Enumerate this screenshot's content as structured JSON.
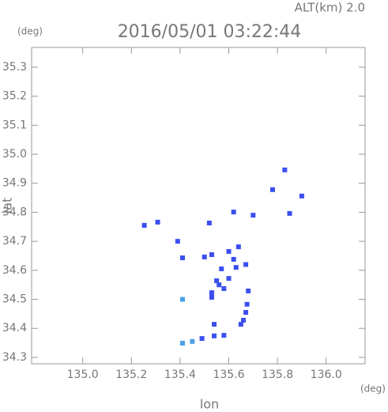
{
  "chart_data": {
    "type": "scatter",
    "title": "2016/05/01 03:22:44",
    "subtitle": "ALT(km) 2.0",
    "y_unit": "(deg)",
    "x_unit": "(deg)",
    "x_label": "lon",
    "y_label": "lat",
    "xlim": [
      134.79,
      136.16
    ],
    "ylim": [
      34.278,
      35.368
    ],
    "xticks": [
      {
        "value": 135.0,
        "label": "135.0"
      },
      135.2,
      135.4,
      135.6,
      135.8,
      {
        "value": 136.0,
        "label": "136.0"
      }
    ],
    "yticks": [
      34.3,
      34.4,
      34.5,
      34.6,
      34.7,
      34.8,
      34.9,
      {
        "value": 35.0,
        "label": "35.0"
      },
      35.1,
      35.2,
      35.3
    ],
    "series": [
      {
        "color": "#3b4ff0",
        "x": [
          135.253,
          135.308,
          135.78,
          135.83,
          135.9,
          135.85,
          135.62,
          135.7,
          135.52,
          135.39,
          135.41,
          135.5,
          135.53,
          135.6,
          135.64,
          135.62,
          135.57,
          135.63,
          135.55,
          135.6,
          135.58,
          135.53,
          135.56,
          135.67,
          135.68,
          135.53,
          135.675,
          135.67,
          135.66,
          135.65,
          135.54,
          135.58,
          135.54,
          135.49
        ],
        "y": [
          34.755,
          34.766,
          34.878,
          34.946,
          34.856,
          34.796,
          34.801,
          34.79,
          34.763,
          34.7,
          34.643,
          34.646,
          34.654,
          34.665,
          34.681,
          34.638,
          34.605,
          34.61,
          34.564,
          34.572,
          34.537,
          34.523,
          34.55,
          34.62,
          34.529,
          34.507,
          34.483,
          34.455,
          34.428,
          34.414,
          34.414,
          34.376,
          34.374,
          34.365
        ]
      },
      {
        "color": "#4aa0e8",
        "x": [
          135.45,
          135.41,
          135.41
        ],
        "y": [
          34.355,
          34.349,
          34.5
        ]
      }
    ]
  }
}
